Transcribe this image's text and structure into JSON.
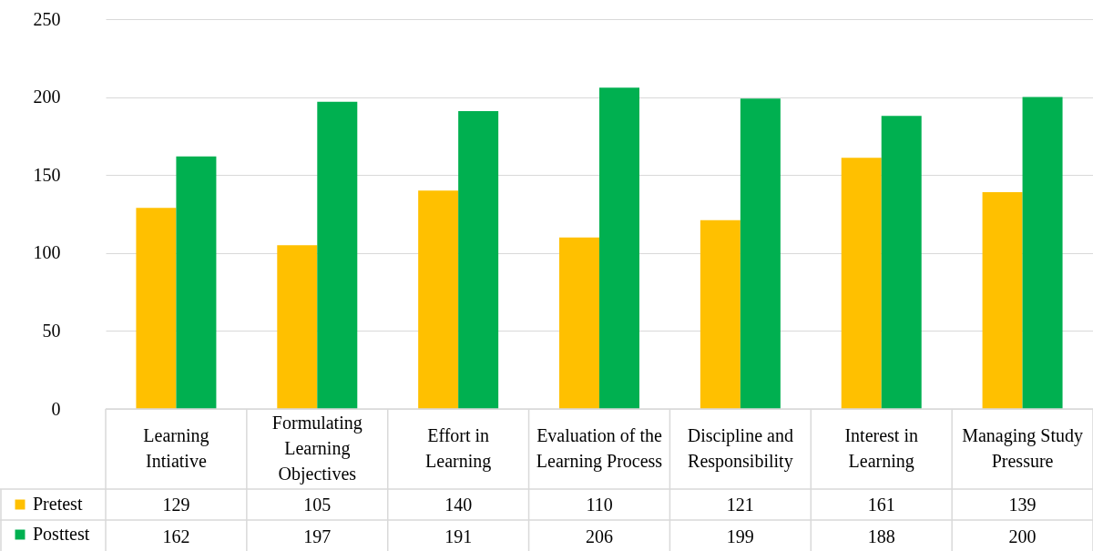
{
  "chart_data": {
    "type": "bar",
    "categories": [
      "Learning Intiative",
      "Formulating Learning Objectives",
      "Effort in Learning",
      "Evaluation of the Learning Process",
      "Discipline and Responsibility",
      "Interest in Learning",
      "Managing Study Pressure"
    ],
    "series": [
      {
        "name": "Pretest",
        "color": "#ffc000",
        "values": [
          129,
          105,
          140,
          110,
          121,
          161,
          139
        ]
      },
      {
        "name": "Posttest",
        "color": "#00b050",
        "values": [
          162,
          197,
          191,
          206,
          199,
          188,
          200
        ]
      }
    ],
    "ylim": [
      0,
      250
    ],
    "yticks": [
      0,
      50,
      100,
      150,
      200,
      250
    ],
    "grid": "y",
    "legend": "bottom left",
    "data_labels": true
  }
}
